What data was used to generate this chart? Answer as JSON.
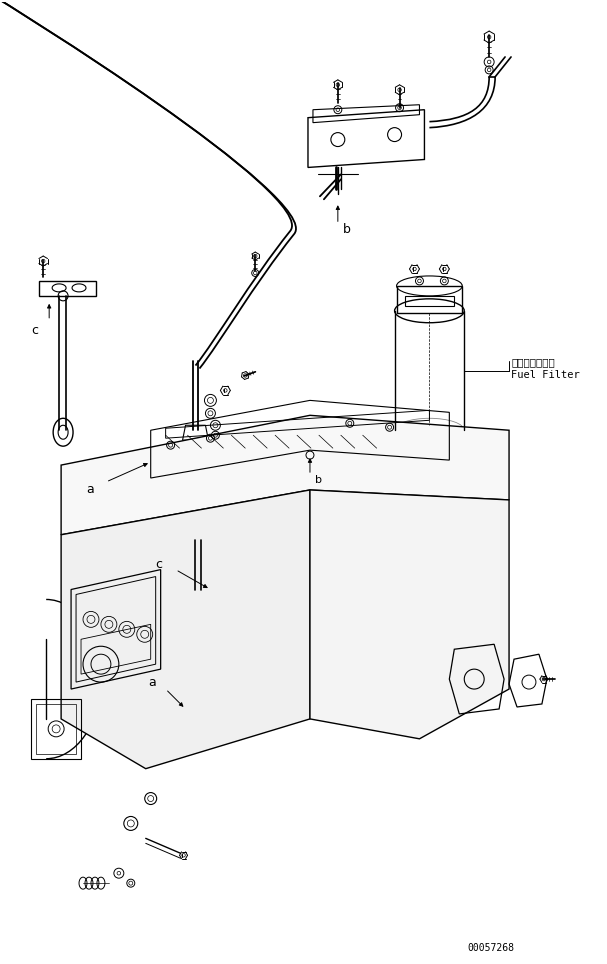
{
  "background_color": "#ffffff",
  "line_color": "#000000",
  "fig_width": 6.07,
  "fig_height": 9.64,
  "dpi": 100,
  "label_fuel_filter_jp": "フェルフィルタ",
  "label_fuel_filter_en": "Fuel Filter",
  "label_a": "a",
  "label_b": "b",
  "label_c": "c",
  "part_number": "00057268"
}
